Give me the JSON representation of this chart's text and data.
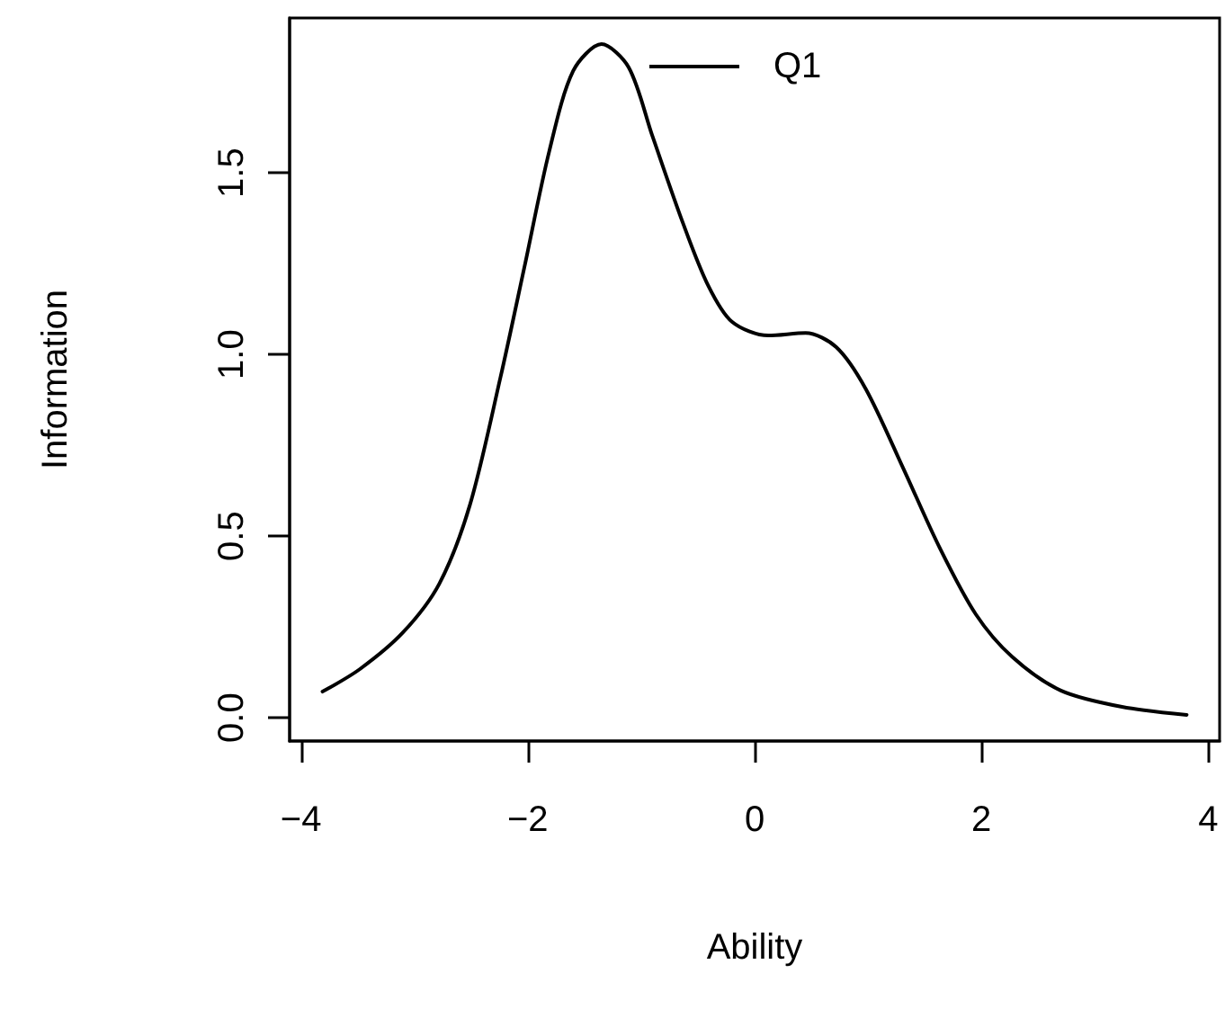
{
  "chart_data": {
    "type": "line",
    "xlabel": "Ability",
    "ylabel": "Information",
    "series": [
      {
        "name": "Q1",
        "color": "#000000",
        "x": [
          -3.81,
          -3.48,
          -3.1,
          -2.78,
          -2.51,
          -2.24,
          -2.03,
          -1.81,
          -1.6,
          -1.35,
          -1.11,
          -0.9,
          -0.63,
          -0.41,
          -0.2,
          0.12,
          0.45,
          0.72,
          0.98,
          1.31,
          1.63,
          1.95,
          2.27,
          2.7,
          3.24,
          3.81
        ],
        "values": [
          0.072,
          0.134,
          0.235,
          0.369,
          0.586,
          0.938,
          1.24,
          1.56,
          1.78,
          1.854,
          1.79,
          1.6,
          1.36,
          1.19,
          1.09,
          1.052,
          1.059,
          1.02,
          0.905,
          0.687,
          0.469,
          0.285,
          0.168,
          0.075,
          0.03,
          0.008
        ]
      }
    ],
    "xlim": [
      -4.1,
      4.1
    ],
    "ylim": [
      -0.064,
      1.926
    ],
    "xticks": [
      {
        "value": -4,
        "label": "−4"
      },
      {
        "value": -2,
        "label": "−2"
      },
      0,
      2,
      4
    ],
    "yticks": [
      {
        "value": 0,
        "label": "0.0"
      },
      {
        "value": 0.5,
        "label": "0.5"
      },
      {
        "value": 1,
        "label": "1.0"
      },
      {
        "value": 1.5,
        "label": "1.5"
      }
    ],
    "legend": "top",
    "marker": "none",
    "line_style": "solid"
  }
}
